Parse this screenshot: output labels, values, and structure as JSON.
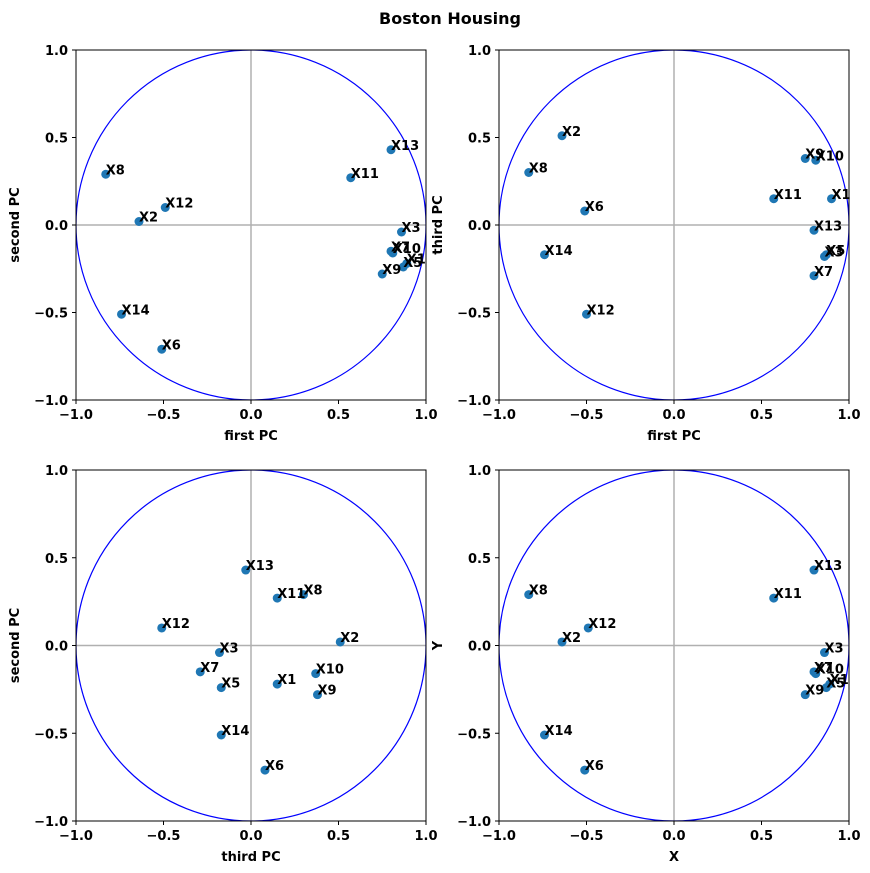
{
  "title": "Boston Housing",
  "colors": {
    "point": "#1f77b4",
    "circle": "#0000ff",
    "refline": "#b0b0b0",
    "frame": "#000000"
  },
  "chart_data": [
    {
      "type": "scatter",
      "xlabel": "first PC",
      "ylabel": "second PC",
      "xlim": [
        -1,
        1
      ],
      "ylim": [
        -1,
        1
      ],
      "xticks": [
        "−1.0",
        "−0.5",
        "0.0",
        "0.5",
        "1.0"
      ],
      "yticks": [
        "−1.0",
        "−0.5",
        "0.0",
        "0.5",
        "1.0"
      ],
      "unit_circle": true,
      "grid": false,
      "points": [
        {
          "label": "X1",
          "x": 0.89,
          "y": -0.22
        },
        {
          "label": "X2",
          "x": -0.64,
          "y": 0.02
        },
        {
          "label": "X3",
          "x": 0.86,
          "y": -0.04
        },
        {
          "label": "X5",
          "x": 0.87,
          "y": -0.24
        },
        {
          "label": "X6",
          "x": -0.51,
          "y": -0.71
        },
        {
          "label": "X7",
          "x": 0.8,
          "y": -0.15
        },
        {
          "label": "X8",
          "x": -0.83,
          "y": 0.29
        },
        {
          "label": "X9",
          "x": 0.75,
          "y": -0.28
        },
        {
          "label": "X10",
          "x": 0.81,
          "y": -0.16
        },
        {
          "label": "X11",
          "x": 0.57,
          "y": 0.27
        },
        {
          "label": "X12",
          "x": -0.49,
          "y": 0.1
        },
        {
          "label": "X13",
          "x": 0.8,
          "y": 0.43
        },
        {
          "label": "X14",
          "x": -0.74,
          "y": -0.51
        }
      ]
    },
    {
      "type": "scatter",
      "xlabel": "first PC",
      "ylabel": "third PC",
      "xlim": [
        -1,
        1
      ],
      "ylim": [
        -1,
        1
      ],
      "xticks": [
        "−1.0",
        "−0.5",
        "0.0",
        "0.5",
        "1.0"
      ],
      "yticks": [
        "−1.0",
        "−0.5",
        "0.0",
        "0.5",
        "1.0"
      ],
      "unit_circle": true,
      "grid": false,
      "points": [
        {
          "label": "X1",
          "x": 0.9,
          "y": 0.15
        },
        {
          "label": "X2",
          "x": -0.64,
          "y": 0.51
        },
        {
          "label": "X3",
          "x": 0.86,
          "y": -0.18
        },
        {
          "label": "X5",
          "x": 0.87,
          "y": -0.17
        },
        {
          "label": "X6",
          "x": -0.51,
          "y": 0.08
        },
        {
          "label": "X7",
          "x": 0.8,
          "y": -0.29
        },
        {
          "label": "X8",
          "x": -0.83,
          "y": 0.3
        },
        {
          "label": "X9",
          "x": 0.75,
          "y": 0.38
        },
        {
          "label": "X10",
          "x": 0.81,
          "y": 0.37
        },
        {
          "label": "X11",
          "x": 0.57,
          "y": 0.15
        },
        {
          "label": "X12",
          "x": -0.5,
          "y": -0.51
        },
        {
          "label": "X13",
          "x": 0.8,
          "y": -0.03
        },
        {
          "label": "X14",
          "x": -0.74,
          "y": -0.17
        }
      ]
    },
    {
      "type": "scatter",
      "xlabel": "third PC",
      "ylabel": "second PC",
      "xlim": [
        -1,
        1
      ],
      "ylim": [
        -1,
        1
      ],
      "xticks": [
        "−1.0",
        "−0.5",
        "0.0",
        "0.5",
        "1.0"
      ],
      "yticks": [
        "−1.0",
        "−0.5",
        "0.0",
        "0.5",
        "1.0"
      ],
      "unit_circle": true,
      "grid": false,
      "points": [
        {
          "label": "X1",
          "x": 0.15,
          "y": -0.22
        },
        {
          "label": "X2",
          "x": 0.51,
          "y": 0.02
        },
        {
          "label": "X3",
          "x": -0.18,
          "y": -0.04
        },
        {
          "label": "X5",
          "x": -0.17,
          "y": -0.24
        },
        {
          "label": "X6",
          "x": 0.08,
          "y": -0.71
        },
        {
          "label": "X7",
          "x": -0.29,
          "y": -0.15
        },
        {
          "label": "X8",
          "x": 0.3,
          "y": 0.29
        },
        {
          "label": "X9",
          "x": 0.38,
          "y": -0.28
        },
        {
          "label": "X10",
          "x": 0.37,
          "y": -0.16
        },
        {
          "label": "X11",
          "x": 0.15,
          "y": 0.27
        },
        {
          "label": "X12",
          "x": -0.51,
          "y": 0.1
        },
        {
          "label": "X13",
          "x": -0.03,
          "y": 0.43
        },
        {
          "label": "X14",
          "x": -0.17,
          "y": -0.51
        }
      ]
    },
    {
      "type": "scatter",
      "xlabel": "X",
      "ylabel": "Y",
      "xlim": [
        -1,
        1
      ],
      "ylim": [
        -1,
        1
      ],
      "xticks": [
        "−1.0",
        "−0.5",
        "0.0",
        "0.5",
        "1.0"
      ],
      "yticks": [
        "−1.0",
        "−0.5",
        "0.0",
        "0.5",
        "1.0"
      ],
      "unit_circle": true,
      "grid": false,
      "points": [
        {
          "label": "X1",
          "x": 0.89,
          "y": -0.22
        },
        {
          "label": "X2",
          "x": -0.64,
          "y": 0.02
        },
        {
          "label": "X3",
          "x": 0.86,
          "y": -0.04
        },
        {
          "label": "X5",
          "x": 0.87,
          "y": -0.24
        },
        {
          "label": "X6",
          "x": -0.51,
          "y": -0.71
        },
        {
          "label": "X7",
          "x": 0.8,
          "y": -0.15
        },
        {
          "label": "X8",
          "x": -0.83,
          "y": 0.29
        },
        {
          "label": "X9",
          "x": 0.75,
          "y": -0.28
        },
        {
          "label": "X10",
          "x": 0.81,
          "y": -0.16
        },
        {
          "label": "X11",
          "x": 0.57,
          "y": 0.27
        },
        {
          "label": "X12",
          "x": -0.49,
          "y": 0.1
        },
        {
          "label": "X13",
          "x": 0.8,
          "y": 0.43
        },
        {
          "label": "X14",
          "x": -0.74,
          "y": -0.51
        }
      ]
    }
  ]
}
